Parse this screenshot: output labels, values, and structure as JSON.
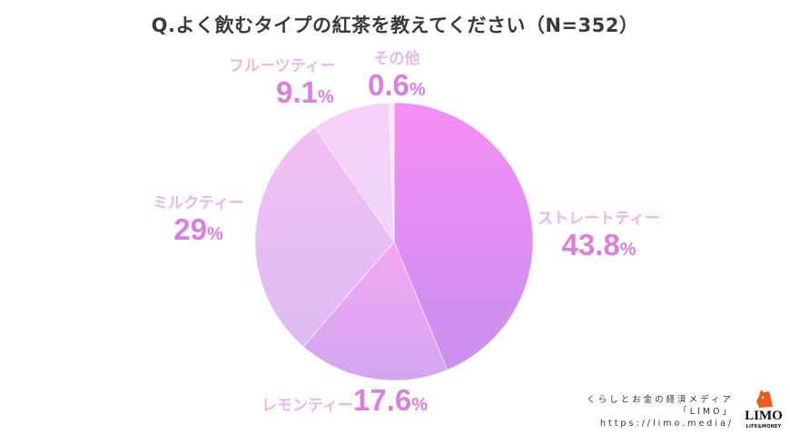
{
  "title": "Q.よく飲むタイプの紅茶を教えてください（N=352）",
  "labels": {
    "straight": {
      "name": "ストレートティー",
      "value": "43.8",
      "unit": "%"
    },
    "lemon": {
      "name": "レモンティー",
      "value": "17.6",
      "unit": "%"
    },
    "milk": {
      "name": "ミルクティー",
      "value": "29",
      "unit": "%"
    },
    "fruit": {
      "name": "フルーツティー",
      "value": "9.1",
      "unit": "%"
    },
    "other": {
      "name": "その他",
      "value": "0.6",
      "unit": "%"
    }
  },
  "credit": {
    "line1": "くらしとお金の経済メディア",
    "line2": "「LIMO」",
    "line3": "https://limo.media/"
  },
  "logo": {
    "word": "LIMO",
    "sub": "LIFE&MONEY"
  },
  "chart_data": {
    "type": "pie",
    "title": "Q.よく飲むタイプの紅茶を教えてください（N=352）",
    "categories": [
      "ストレートティー",
      "レモンティー",
      "ミルクティー",
      "フルーツティー",
      "その他"
    ],
    "values": [
      43.8,
      17.6,
      29,
      9.1,
      0.6
    ],
    "unit": "%",
    "n": 352,
    "start_angle": "12 o'clock, clockwise",
    "colors": [
      "#e38cf0",
      "#e6a6f0",
      "#efc2f3",
      "#f5d4f7",
      "#faeafb"
    ],
    "legend": "none (direct labels)"
  }
}
